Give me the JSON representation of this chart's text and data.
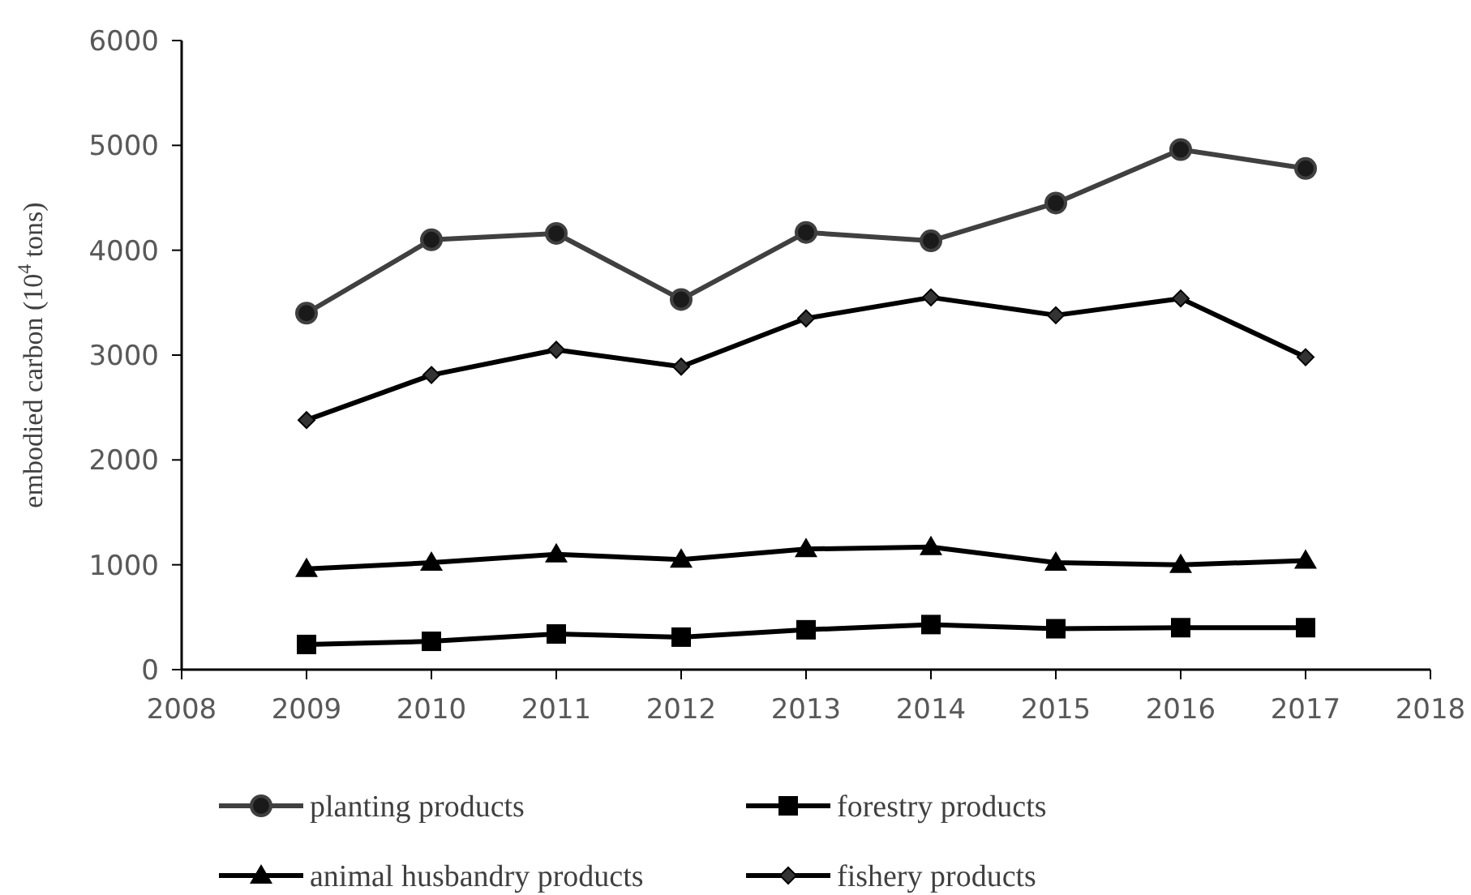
{
  "chart_data": {
    "type": "line",
    "ylabel": "embodied carbon (10$^{4}$ tons)",
    "x": [
      2009,
      2010,
      2011,
      2012,
      2013,
      2014,
      2015,
      2016,
      2017
    ],
    "xlim": [
      2008,
      2018
    ],
    "xticks": [
      2008,
      2009,
      2010,
      2011,
      2012,
      2013,
      2014,
      2015,
      2016,
      2017,
      2018
    ],
    "ylim": [
      0,
      6000
    ],
    "yticks": [
      0,
      1000,
      2000,
      3000,
      4000,
      5000,
      6000
    ],
    "grid": false,
    "legend": "bottom",
    "line_style": "solid",
    "series": [
      {
        "name": "planting products",
        "color": "#404040",
        "marker": "circle",
        "values": [
          3400,
          4100,
          4160,
          3530,
          4170,
          4090,
          4450,
          4960,
          4780
        ]
      },
      {
        "name": "forestry products",
        "color": "#000000",
        "marker": "square",
        "values": [
          240,
          270,
          340,
          310,
          380,
          430,
          390,
          400,
          400
        ]
      },
      {
        "name": "animal husbandry products",
        "color": "#000000",
        "marker": "triangle",
        "values": [
          960,
          1020,
          1100,
          1050,
          1150,
          1170,
          1020,
          1000,
          1040
        ]
      },
      {
        "name": "fishery products",
        "color": "#000000",
        "marker": "diamond",
        "values": [
          2380,
          2810,
          3050,
          2890,
          3350,
          3550,
          3380,
          3540,
          2980
        ]
      }
    ]
  }
}
